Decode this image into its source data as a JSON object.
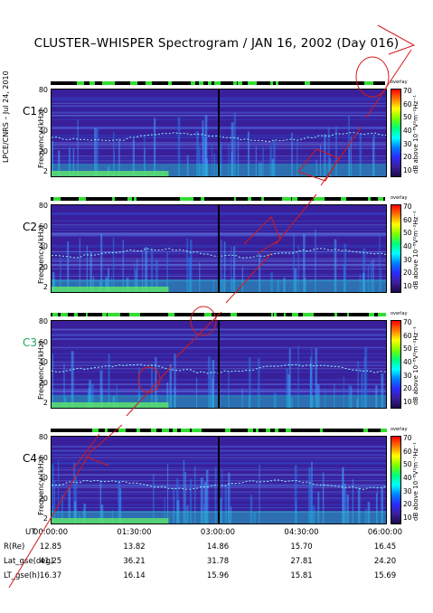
{
  "title": "CLUSTER–WHISPER Spectrogram / JAN 16, 2002 (Day 016)",
  "side_note": "LPCE/CNRS – Jul 24, 2010",
  "y_axis_label": "Frequency (kHz)",
  "y_ticks": [
    "80",
    "60",
    "40",
    "20",
    "2"
  ],
  "colorbar": {
    "label": "dB above 10⁻⁸V²m⁻²Hz⁻¹",
    "ticks": [
      "70",
      "60",
      "50",
      "40",
      "30",
      "20",
      "10"
    ],
    "overlay_label": "overlay"
  },
  "colors": {
    "background": "#3a1f9a",
    "accent_line": "#e5e5ff",
    "c3_label": "#1f9a3a",
    "watermark": "#d41a1a"
  },
  "panels": [
    {
      "label": "C1",
      "label_color": "#000000"
    },
    {
      "label": "C2",
      "label_color": "#000000"
    },
    {
      "label": "C3",
      "label_color": "#1ea85a"
    },
    {
      "label": "C4",
      "label_color": "#000000"
    }
  ],
  "x_axis": {
    "row_title": "UT",
    "ticks": [
      "00:00:00",
      "01:30:00",
      "03:00:00",
      "04:30:00",
      "06:00:00"
    ]
  },
  "ephemeris": [
    {
      "label": "R(Re)",
      "values": [
        "12.85",
        "13.82",
        "14.86",
        "15.70",
        "16.45"
      ]
    },
    {
      "label": "Lat_gse(deg)",
      "values": [
        "41.25",
        "36.21",
        "31.78",
        "27.81",
        "24.20"
      ]
    },
    {
      "label": "LT_gse(h)",
      "values": [
        "16.37",
        "16.14",
        "15.96",
        "15.81",
        "15.69"
      ]
    }
  ],
  "chart_data": {
    "type": "heatmap",
    "title": "CLUSTER–WHISPER Spectrogram / JAN 16, 2002 (Day 016)",
    "x": [
      "00:00:00",
      "01:30:00",
      "03:00:00",
      "04:30:00",
      "06:00:00"
    ],
    "xlabel": "UT",
    "ylabel": "Frequency (kHz)",
    "ylim": [
      2,
      80
    ],
    "zlabel": "dB above 10⁻⁸V²m⁻²Hz⁻¹",
    "zlim": [
      10,
      70
    ],
    "series": [
      {
        "name": "C1"
      },
      {
        "name": "C2"
      },
      {
        "name": "C3"
      },
      {
        "name": "C4"
      }
    ]
  }
}
